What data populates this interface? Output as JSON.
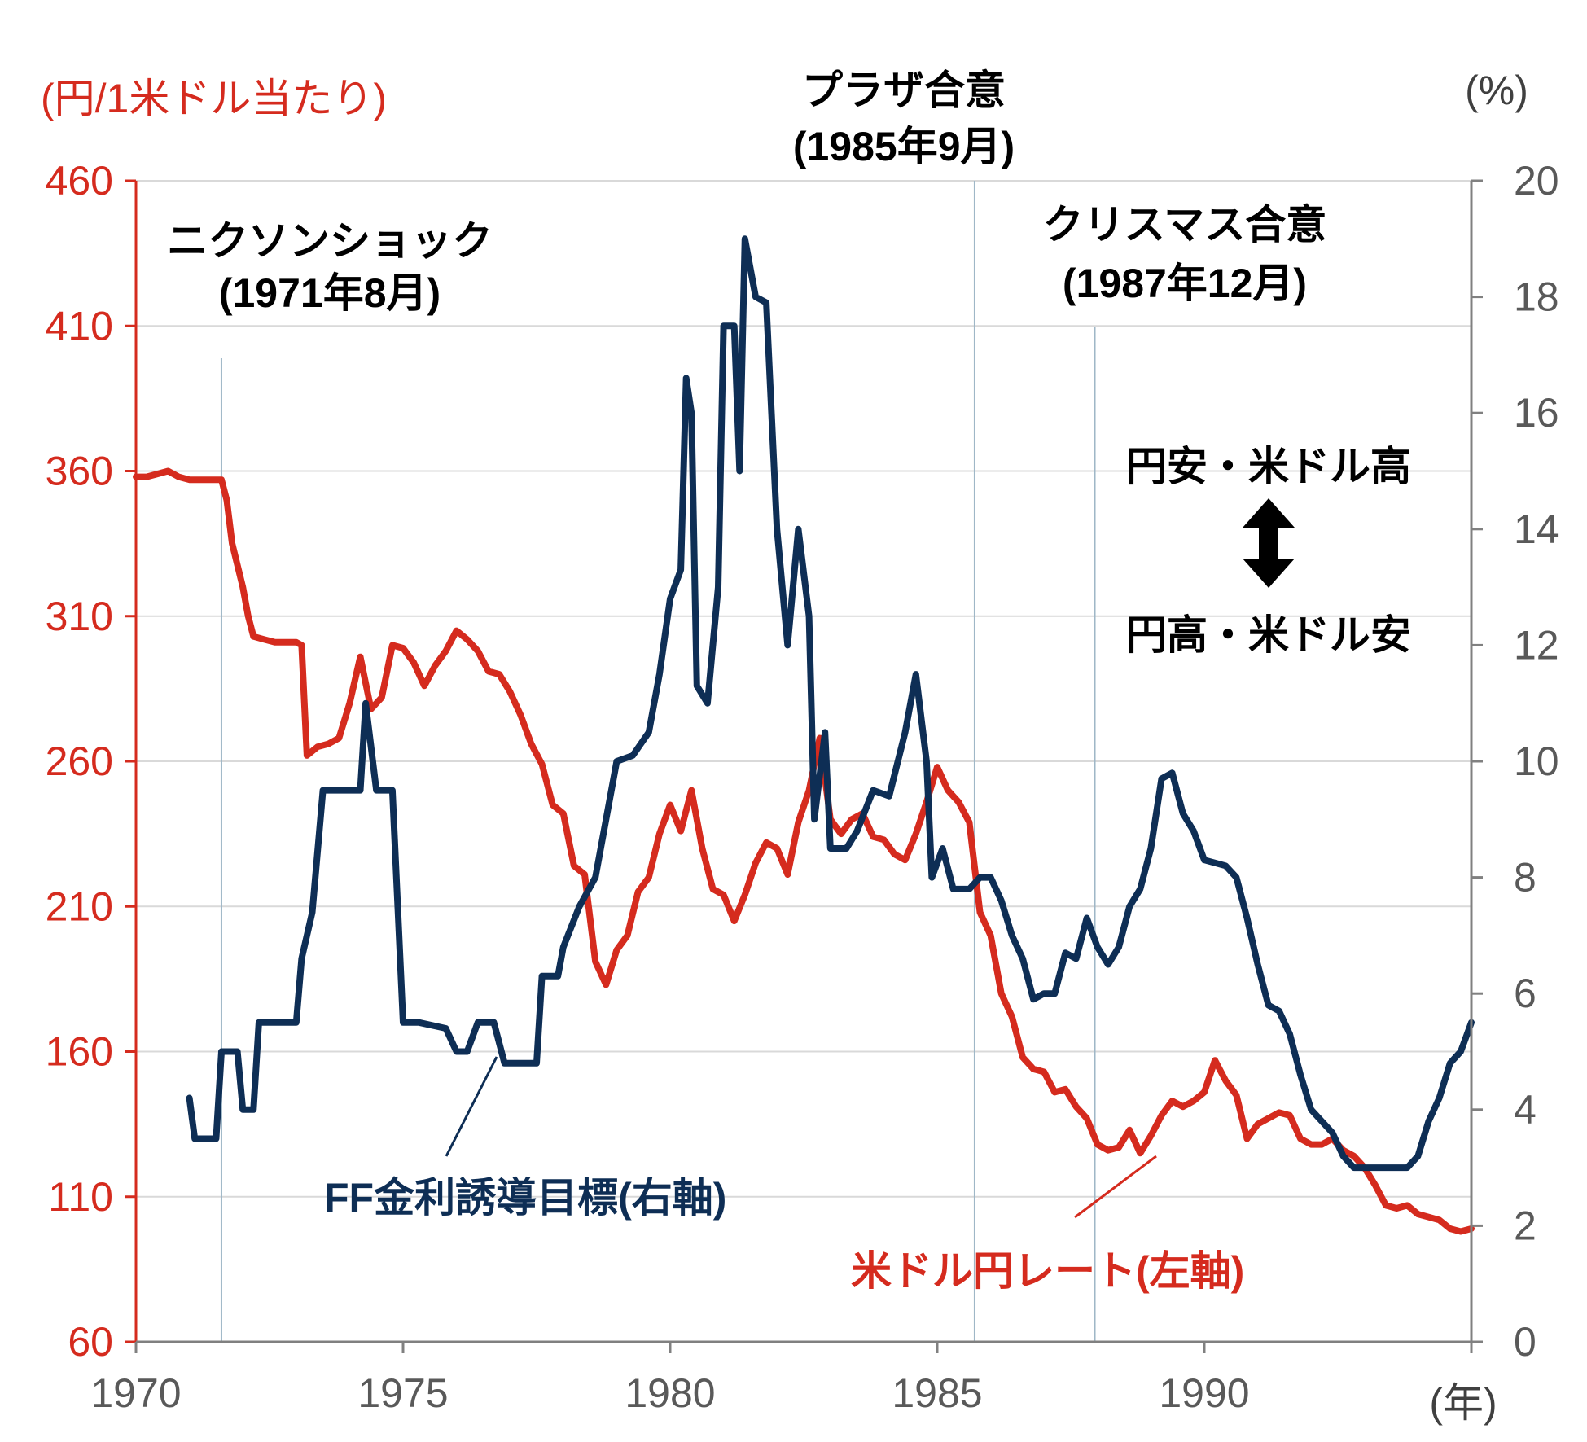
{
  "chart_data": {
    "type": "line",
    "title": "",
    "x_unit_label": "(年)",
    "xlim": [
      1970,
      1995
    ],
    "x_ticks": [
      "1970",
      "1975",
      "1980",
      "1985",
      "1990"
    ],
    "x_tick_values": [
      1970,
      1975,
      1980,
      1985,
      1990
    ],
    "y_left": {
      "unit_label": "(円/1米ドル当たり)",
      "ylim": [
        60,
        460
      ],
      "ticks": [
        "460",
        "410",
        "360",
        "310",
        "260",
        "210",
        "160",
        "110",
        "60"
      ],
      "tick_values": [
        460,
        410,
        360,
        310,
        260,
        210,
        160,
        110,
        60
      ],
      "color": "#d52b1e"
    },
    "y_right": {
      "unit_label": "(%)",
      "ylim": [
        0,
        20
      ],
      "ticks": [
        "20",
        "18",
        "16",
        "14",
        "12",
        "10",
        "8",
        "6",
        "4",
        "2",
        "0"
      ],
      "tick_values": [
        20,
        18,
        16,
        14,
        12,
        10,
        8,
        6,
        4,
        2,
        0
      ],
      "color": "#808080"
    },
    "grid": true,
    "events": [
      {
        "label_line1": "ニクソンショック",
        "label_line2": "(1971年8月)",
        "x": 1971.6
      },
      {
        "label_line1": "プラザ合意",
        "label_line2": "(1985年9月)",
        "x": 1985.7
      },
      {
        "label_line1": "クリスマス合意",
        "label_line2": "(1987年12月)",
        "x": 1987.95
      }
    ],
    "direction_note": {
      "top": "円安・米ドル高",
      "bottom": "円高・米ドル安"
    },
    "series": [
      {
        "name": "米ドル円レート(左軸)",
        "axis": "left",
        "color": "#d52b1e",
        "points": [
          [
            1970.0,
            358
          ],
          [
            1970.2,
            358
          ],
          [
            1970.4,
            359
          ],
          [
            1970.6,
            360
          ],
          [
            1970.8,
            358
          ],
          [
            1971.0,
            357
          ],
          [
            1971.2,
            357
          ],
          [
            1971.5,
            357
          ],
          [
            1971.6,
            357
          ],
          [
            1971.7,
            350
          ],
          [
            1971.8,
            335
          ],
          [
            1972.0,
            320
          ],
          [
            1972.1,
            310
          ],
          [
            1972.2,
            303
          ],
          [
            1972.4,
            302
          ],
          [
            1972.6,
            301
          ],
          [
            1972.8,
            301
          ],
          [
            1973.0,
            301
          ],
          [
            1973.1,
            300
          ],
          [
            1973.2,
            262
          ],
          [
            1973.4,
            265
          ],
          [
            1973.6,
            266
          ],
          [
            1973.8,
            268
          ],
          [
            1974.0,
            280
          ],
          [
            1974.2,
            296
          ],
          [
            1974.4,
            278
          ],
          [
            1974.6,
            282
          ],
          [
            1974.8,
            300
          ],
          [
            1975.0,
            299
          ],
          [
            1975.2,
            294
          ],
          [
            1975.4,
            286
          ],
          [
            1975.6,
            293
          ],
          [
            1975.8,
            298
          ],
          [
            1976.0,
            305
          ],
          [
            1976.2,
            302
          ],
          [
            1976.4,
            298
          ],
          [
            1976.6,
            291
          ],
          [
            1976.8,
            290
          ],
          [
            1977.0,
            284
          ],
          [
            1977.2,
            276
          ],
          [
            1977.4,
            266
          ],
          [
            1977.6,
            259
          ],
          [
            1977.8,
            245
          ],
          [
            1978.0,
            242
          ],
          [
            1978.2,
            224
          ],
          [
            1978.4,
            221
          ],
          [
            1978.6,
            191
          ],
          [
            1978.8,
            183
          ],
          [
            1979.0,
            195
          ],
          [
            1979.2,
            200
          ],
          [
            1979.4,
            215
          ],
          [
            1979.6,
            220
          ],
          [
            1979.8,
            235
          ],
          [
            1980.0,
            245
          ],
          [
            1980.2,
            236
          ],
          [
            1980.4,
            250
          ],
          [
            1980.6,
            230
          ],
          [
            1980.8,
            216
          ],
          [
            1981.0,
            214
          ],
          [
            1981.2,
            205
          ],
          [
            1981.4,
            214
          ],
          [
            1981.6,
            225
          ],
          [
            1981.8,
            232
          ],
          [
            1982.0,
            230
          ],
          [
            1982.2,
            221
          ],
          [
            1982.4,
            239
          ],
          [
            1982.6,
            250
          ],
          [
            1982.8,
            268
          ],
          [
            1983.0,
            240
          ],
          [
            1983.2,
            235
          ],
          [
            1983.4,
            240
          ],
          [
            1983.6,
            242
          ],
          [
            1983.8,
            234
          ],
          [
            1984.0,
            233
          ],
          [
            1984.2,
            228
          ],
          [
            1984.4,
            226
          ],
          [
            1984.6,
            235
          ],
          [
            1984.8,
            246
          ],
          [
            1985.0,
            258
          ],
          [
            1985.2,
            250
          ],
          [
            1985.4,
            246
          ],
          [
            1985.6,
            239
          ],
          [
            1985.8,
            208
          ],
          [
            1986.0,
            200
          ],
          [
            1986.2,
            180
          ],
          [
            1986.4,
            172
          ],
          [
            1986.6,
            158
          ],
          [
            1986.8,
            154
          ],
          [
            1987.0,
            153
          ],
          [
            1987.2,
            146
          ],
          [
            1987.4,
            147
          ],
          [
            1987.6,
            141
          ],
          [
            1987.8,
            137
          ],
          [
            1988.0,
            128
          ],
          [
            1988.2,
            126
          ],
          [
            1988.4,
            127
          ],
          [
            1988.6,
            133
          ],
          [
            1988.8,
            125
          ],
          [
            1989.0,
            131
          ],
          [
            1989.2,
            138
          ],
          [
            1989.4,
            143
          ],
          [
            1989.6,
            141
          ],
          [
            1989.8,
            143
          ],
          [
            1990.0,
            146
          ],
          [
            1990.2,
            157
          ],
          [
            1990.4,
            150
          ],
          [
            1990.6,
            145
          ],
          [
            1990.8,
            130
          ],
          [
            1991.0,
            135
          ],
          [
            1991.2,
            137
          ],
          [
            1991.4,
            139
          ],
          [
            1991.6,
            138
          ],
          [
            1991.8,
            130
          ],
          [
            1992.0,
            128
          ],
          [
            1992.2,
            128
          ],
          [
            1992.4,
            130
          ],
          [
            1992.6,
            126
          ],
          [
            1992.8,
            124
          ],
          [
            1993.0,
            120
          ],
          [
            1993.2,
            114
          ],
          [
            1993.4,
            107
          ],
          [
            1993.6,
            106
          ],
          [
            1993.8,
            107
          ],
          [
            1994.0,
            104
          ],
          [
            1994.2,
            103
          ],
          [
            1994.4,
            102
          ],
          [
            1994.6,
            99
          ],
          [
            1994.8,
            98
          ],
          [
            1995.0,
            99
          ]
        ]
      },
      {
        "name": "FF金利誘導目標(右軸)",
        "axis": "right",
        "color": "#0e2e55",
        "points": [
          [
            1971.0,
            4.2
          ],
          [
            1971.1,
            3.5
          ],
          [
            1971.5,
            3.5
          ],
          [
            1971.6,
            5.0
          ],
          [
            1971.9,
            5.0
          ],
          [
            1972.0,
            4.0
          ],
          [
            1972.2,
            4.0
          ],
          [
            1972.3,
            5.5
          ],
          [
            1973.0,
            5.5
          ],
          [
            1973.1,
            6.6
          ],
          [
            1973.3,
            7.4
          ],
          [
            1973.5,
            9.5
          ],
          [
            1974.2,
            9.5
          ],
          [
            1974.3,
            11.0
          ],
          [
            1974.5,
            9.5
          ],
          [
            1974.8,
            9.5
          ],
          [
            1975.0,
            5.5
          ],
          [
            1975.3,
            5.5
          ],
          [
            1975.8,
            5.4
          ],
          [
            1976.0,
            5.0
          ],
          [
            1976.2,
            5.0
          ],
          [
            1976.4,
            5.5
          ],
          [
            1976.7,
            5.5
          ],
          [
            1976.9,
            4.8
          ],
          [
            1977.5,
            4.8
          ],
          [
            1977.6,
            6.3
          ],
          [
            1977.9,
            6.3
          ],
          [
            1978.0,
            6.8
          ],
          [
            1978.3,
            7.5
          ],
          [
            1978.6,
            8.0
          ],
          [
            1978.8,
            9.0
          ],
          [
            1979.0,
            10.0
          ],
          [
            1979.3,
            10.1
          ],
          [
            1979.6,
            10.5
          ],
          [
            1979.8,
            11.5
          ],
          [
            1980.0,
            12.8
          ],
          [
            1980.2,
            13.3
          ],
          [
            1980.3,
            16.6
          ],
          [
            1980.4,
            16.0
          ],
          [
            1980.5,
            11.3
          ],
          [
            1980.7,
            11.0
          ],
          [
            1980.9,
            13.0
          ],
          [
            1981.0,
            17.5
          ],
          [
            1981.2,
            17.5
          ],
          [
            1981.3,
            15.0
          ],
          [
            1981.4,
            19.0
          ],
          [
            1981.6,
            18.0
          ],
          [
            1981.8,
            17.9
          ],
          [
            1982.0,
            14.0
          ],
          [
            1982.2,
            12.0
          ],
          [
            1982.4,
            14.0
          ],
          [
            1982.6,
            12.5
          ],
          [
            1982.7,
            9.0
          ],
          [
            1982.9,
            10.5
          ],
          [
            1983.0,
            8.5
          ],
          [
            1983.3,
            8.5
          ],
          [
            1983.5,
            8.8
          ],
          [
            1983.8,
            9.5
          ],
          [
            1984.1,
            9.4
          ],
          [
            1984.4,
            10.5
          ],
          [
            1984.6,
            11.5
          ],
          [
            1984.8,
            10.0
          ],
          [
            1984.9,
            8.0
          ],
          [
            1985.1,
            8.5
          ],
          [
            1985.3,
            7.8
          ],
          [
            1985.6,
            7.8
          ],
          [
            1985.8,
            8.0
          ],
          [
            1986.0,
            8.0
          ],
          [
            1986.2,
            7.6
          ],
          [
            1986.4,
            7.0
          ],
          [
            1986.6,
            6.6
          ],
          [
            1986.8,
            5.9
          ],
          [
            1987.0,
            6.0
          ],
          [
            1987.2,
            6.0
          ],
          [
            1987.4,
            6.7
          ],
          [
            1987.6,
            6.6
          ],
          [
            1987.8,
            7.3
          ],
          [
            1988.0,
            6.8
          ],
          [
            1988.2,
            6.5
          ],
          [
            1988.4,
            6.8
          ],
          [
            1988.6,
            7.5
          ],
          [
            1988.8,
            7.8
          ],
          [
            1989.0,
            8.5
          ],
          [
            1989.2,
            9.7
          ],
          [
            1989.4,
            9.8
          ],
          [
            1989.6,
            9.1
          ],
          [
            1989.8,
            8.8
          ],
          [
            1990.0,
            8.3
          ],
          [
            1990.4,
            8.2
          ],
          [
            1990.6,
            8.0
          ],
          [
            1990.8,
            7.3
          ],
          [
            1991.0,
            6.5
          ],
          [
            1991.2,
            5.8
          ],
          [
            1991.4,
            5.7
          ],
          [
            1991.6,
            5.3
          ],
          [
            1991.8,
            4.6
          ],
          [
            1992.0,
            4.0
          ],
          [
            1992.2,
            3.8
          ],
          [
            1992.4,
            3.6
          ],
          [
            1992.6,
            3.2
          ],
          [
            1992.8,
            3.0
          ],
          [
            1993.0,
            3.0
          ],
          [
            1993.5,
            3.0
          ],
          [
            1993.8,
            3.0
          ],
          [
            1994.0,
            3.2
          ],
          [
            1994.2,
            3.8
          ],
          [
            1994.4,
            4.2
          ],
          [
            1994.6,
            4.8
          ],
          [
            1994.8,
            5.0
          ],
          [
            1995.0,
            5.5
          ]
        ]
      }
    ]
  }
}
